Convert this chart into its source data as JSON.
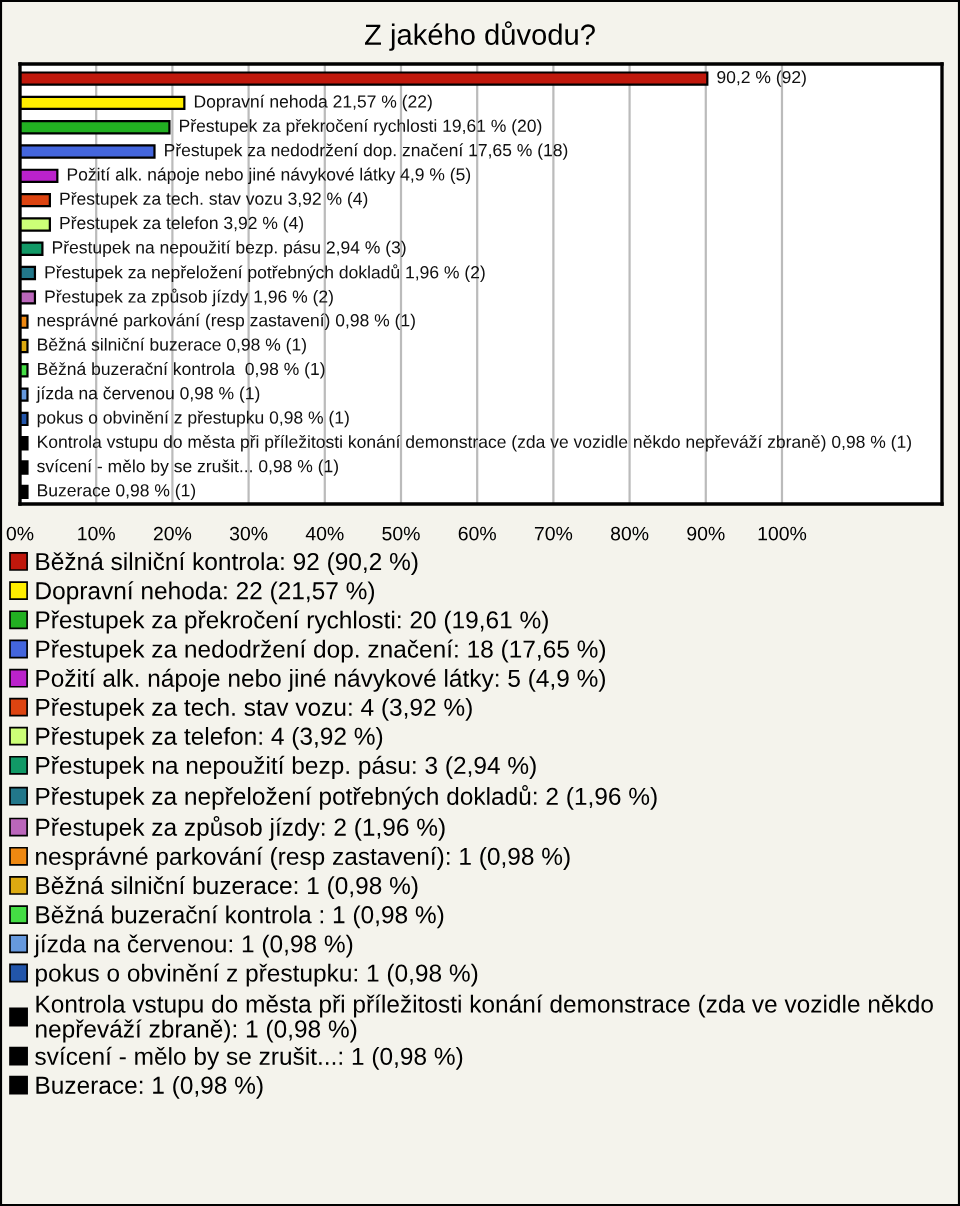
{
  "chart_data": {
    "type": "bar",
    "orientation": "horizontal",
    "title": "Z jakého důvodu?",
    "categories": [
      null,
      null,
      null,
      null,
      null,
      null,
      null,
      null,
      null,
      null,
      null,
      null,
      null,
      null,
      null,
      null,
      null,
      null
    ],
    "series": [
      {
        "name": "Běžná silniční kontrola: 92 (90,2 %)",
        "color": "#c0180c",
        "values": [
          90.2,
          null,
          null,
          null,
          null,
          null,
          null,
          null,
          null,
          null,
          null,
          null,
          null,
          null,
          null,
          null,
          null,
          null
        ],
        "value_labels": [
          "90,2 % (92)",
          null,
          null,
          null,
          null,
          null,
          null,
          null,
          null,
          null,
          null,
          null,
          null,
          null,
          null,
          null,
          null,
          null
        ]
      },
      {
        "name": "Dopravní nehoda: 22 (21,57 %)",
        "color": "#ffee00",
        "values": [
          null,
          21.57,
          null,
          null,
          null,
          null,
          null,
          null,
          null,
          null,
          null,
          null,
          null,
          null,
          null,
          null,
          null,
          null
        ],
        "value_labels": [
          null,
          "Dopravní nehoda 21,57 % (22)",
          null,
          null,
          null,
          null,
          null,
          null,
          null,
          null,
          null,
          null,
          null,
          null,
          null,
          null,
          null,
          null
        ]
      },
      {
        "name": "Přestupek za překročení rychlosti: 20 (19,61 %)",
        "color": "#22b022",
        "values": [
          null,
          null,
          19.61,
          null,
          null,
          null,
          null,
          null,
          null,
          null,
          null,
          null,
          null,
          null,
          null,
          null,
          null,
          null
        ],
        "value_labels": [
          null,
          null,
          "Přestupek za překročení rychlosti 19,61 % (20)",
          null,
          null,
          null,
          null,
          null,
          null,
          null,
          null,
          null,
          null,
          null,
          null,
          null,
          null,
          null
        ]
      },
      {
        "name": "Přestupek za nedodržení dop. značení: 18 (17,65 %)",
        "color": "#4466dd",
        "values": [
          null,
          null,
          null,
          17.65,
          null,
          null,
          null,
          null,
          null,
          null,
          null,
          null,
          null,
          null,
          null,
          null,
          null,
          null
        ],
        "value_labels": [
          null,
          null,
          null,
          "Přestupek za nedodržení dop. značení 17,65 % (18)",
          null,
          null,
          null,
          null,
          null,
          null,
          null,
          null,
          null,
          null,
          null,
          null,
          null,
          null
        ]
      },
      {
        "name": "Požití alk. nápoje nebo jiné návykové látky: 5 (4,9 %)",
        "color": "#bb22cc",
        "values": [
          null,
          null,
          null,
          null,
          4.9,
          null,
          null,
          null,
          null,
          null,
          null,
          null,
          null,
          null,
          null,
          null,
          null,
          null
        ],
        "value_labels": [
          null,
          null,
          null,
          null,
          "Požití alk. nápoje nebo jiné návykové látky 4,9 % (5)",
          null,
          null,
          null,
          null,
          null,
          null,
          null,
          null,
          null,
          null,
          null,
          null,
          null
        ]
      },
      {
        "name": "Přestupek za tech. stav vozu: 4 (3,92 %)",
        "color": "#dd4411",
        "values": [
          null,
          null,
          null,
          null,
          null,
          3.92,
          null,
          null,
          null,
          null,
          null,
          null,
          null,
          null,
          null,
          null,
          null,
          null
        ],
        "value_labels": [
          null,
          null,
          null,
          null,
          null,
          "Přestupek za tech. stav vozu 3,92 % (4)",
          null,
          null,
          null,
          null,
          null,
          null,
          null,
          null,
          null,
          null,
          null,
          null
        ]
      },
      {
        "name": "Přestupek za telefon: 4 (3,92 %)",
        "color": "#ccff77",
        "values": [
          null,
          null,
          null,
          null,
          null,
          null,
          3.92,
          null,
          null,
          null,
          null,
          null,
          null,
          null,
          null,
          null,
          null,
          null
        ],
        "value_labels": [
          null,
          null,
          null,
          null,
          null,
          null,
          "Přestupek za telefon 3,92 % (4)",
          null,
          null,
          null,
          null,
          null,
          null,
          null,
          null,
          null,
          null,
          null
        ]
      },
      {
        "name": "Přestupek na nepoužití bezp. pásu: 3 (2,94 %)",
        "color": "#119966",
        "values": [
          null,
          null,
          null,
          null,
          null,
          null,
          null,
          2.94,
          null,
          null,
          null,
          null,
          null,
          null,
          null,
          null,
          null,
          null
        ],
        "value_labels": [
          null,
          null,
          null,
          null,
          null,
          null,
          null,
          "Přestupek na nepoužití bezp. pásu 2,94 % (3)",
          null,
          null,
          null,
          null,
          null,
          null,
          null,
          null,
          null,
          null
        ]
      },
      {
        "name": "Přestupek za nepřeložení potřebných dokladů: 2 (1,96 %)",
        "color": "#22778a",
        "values": [
          null,
          null,
          null,
          null,
          null,
          null,
          null,
          null,
          1.96,
          null,
          null,
          null,
          null,
          null,
          null,
          null,
          null,
          null
        ],
        "value_labels": [
          null,
          null,
          null,
          null,
          null,
          null,
          null,
          null,
          "Přestupek za nepřeložení potřebných dokladů 1,96 % (2)",
          null,
          null,
          null,
          null,
          null,
          null,
          null,
          null,
          null
        ]
      },
      {
        "name": "Přestupek za způsob jízdy: 2 (1,96 %)",
        "color": "#bb66bb",
        "values": [
          null,
          null,
          null,
          null,
          null,
          null,
          null,
          null,
          null,
          1.96,
          null,
          null,
          null,
          null,
          null,
          null,
          null,
          null
        ],
        "value_labels": [
          null,
          null,
          null,
          null,
          null,
          null,
          null,
          null,
          null,
          "Přestupek za způsob jízdy 1,96 % (2)",
          null,
          null,
          null,
          null,
          null,
          null,
          null,
          null
        ]
      },
      {
        "name": "nesprávné parkování (resp zastavení): 1 (0,98 %)",
        "color": "#ee8811",
        "values": [
          null,
          null,
          null,
          null,
          null,
          null,
          null,
          null,
          null,
          null,
          0.98,
          null,
          null,
          null,
          null,
          null,
          null,
          null
        ],
        "value_labels": [
          null,
          null,
          null,
          null,
          null,
          null,
          null,
          null,
          null,
          null,
          "nesprávné parkování (resp zastavení) 0,98 % (1)",
          null,
          null,
          null,
          null,
          null,
          null,
          null
        ]
      },
      {
        "name": "Běžná silniční buzerace: 1 (0,98 %)",
        "color": "#ddaa11",
        "values": [
          null,
          null,
          null,
          null,
          null,
          null,
          null,
          null,
          null,
          null,
          null,
          0.98,
          null,
          null,
          null,
          null,
          null,
          null
        ],
        "value_labels": [
          null,
          null,
          null,
          null,
          null,
          null,
          null,
          null,
          null,
          null,
          null,
          "Běžná silniční buzerace 0,98 % (1)",
          null,
          null,
          null,
          null,
          null,
          null
        ]
      },
      {
        "name": "Běžná buzerační kontrola : 1 (0,98 %)",
        "color": "#44dd44",
        "values": [
          null,
          null,
          null,
          null,
          null,
          null,
          null,
          null,
          null,
          null,
          null,
          null,
          0.98,
          null,
          null,
          null,
          null,
          null
        ],
        "value_labels": [
          null,
          null,
          null,
          null,
          null,
          null,
          null,
          null,
          null,
          null,
          null,
          null,
          "Běžná buzerační kontrola  0,98 % (1)",
          null,
          null,
          null,
          null,
          null
        ]
      },
      {
        "name": "jízda na červenou: 1 (0,98 %)",
        "color": "#6699dd",
        "values": [
          null,
          null,
          null,
          null,
          null,
          null,
          null,
          null,
          null,
          null,
          null,
          null,
          null,
          0.98,
          null,
          null,
          null,
          null
        ],
        "value_labels": [
          null,
          null,
          null,
          null,
          null,
          null,
          null,
          null,
          null,
          null,
          null,
          null,
          null,
          "jízda na červenou 0,98 % (1)",
          null,
          null,
          null,
          null
        ]
      },
      {
        "name": "pokus o obvinění z přestupku: 1 (0,98 %)",
        "color": "#2255aa",
        "values": [
          null,
          null,
          null,
          null,
          null,
          null,
          null,
          null,
          null,
          null,
          null,
          null,
          null,
          null,
          0.98,
          null,
          null,
          null
        ],
        "value_labels": [
          null,
          null,
          null,
          null,
          null,
          null,
          null,
          null,
          null,
          null,
          null,
          null,
          null,
          null,
          "pokus o obvinění z přestupku 0,98 % (1)",
          null,
          null,
          null
        ]
      },
      {
        "name": "Kontrola vstupu do města při příležitosti konání demonstrace (zda ve vozidle někdo nepřeváží zbraně): 1 (0,98 %)",
        "color": "#000000",
        "values": [
          null,
          null,
          null,
          null,
          null,
          null,
          null,
          null,
          null,
          null,
          null,
          null,
          null,
          null,
          null,
          0.98,
          null,
          null
        ],
        "value_labels": [
          null,
          null,
          null,
          null,
          null,
          null,
          null,
          null,
          null,
          null,
          null,
          null,
          null,
          null,
          null,
          "Kontrola vstupu do města při příležitosti konání demonstrace (zda ve vozidle někdo nepřeváží zbraně) 0,98 % (1)",
          null,
          null
        ]
      },
      {
        "name": "svícení - mělo by se zrušit...: 1 (0,98 %)",
        "color": "#000000",
        "values": [
          null,
          null,
          null,
          null,
          null,
          null,
          null,
          null,
          null,
          null,
          null,
          null,
          null,
          null,
          null,
          null,
          0.98,
          null
        ],
        "value_labels": [
          null,
          null,
          null,
          null,
          null,
          null,
          null,
          null,
          null,
          null,
          null,
          null,
          null,
          null,
          null,
          null,
          "svícení - mělo by se zrušit... 0,98 % (1)",
          null
        ]
      },
      {
        "name": "Buzerace: 1 (0,98 %)",
        "color": "#000000",
        "values": [
          null,
          null,
          null,
          null,
          null,
          null,
          null,
          null,
          null,
          null,
          null,
          null,
          null,
          null,
          null,
          null,
          null,
          0.98
        ],
        "value_labels": [
          null,
          null,
          null,
          null,
          null,
          null,
          null,
          null,
          null,
          null,
          null,
          null,
          null,
          null,
          null,
          null,
          null,
          "Buzerace 0,98 % (1)"
        ]
      }
    ],
    "xlim": [
      0,
      121
    ],
    "xticks": [
      {
        "value": 0,
        "label": "0%"
      },
      {
        "value": 10,
        "label": "10%"
      },
      {
        "value": 20,
        "label": "20%"
      },
      {
        "value": 30,
        "label": "30%"
      },
      {
        "value": 40,
        "label": "40%"
      },
      {
        "value": 50,
        "label": "50%"
      },
      {
        "value": 60,
        "label": "60%"
      },
      {
        "value": 70,
        "label": "70%"
      },
      {
        "value": 80,
        "label": "80%"
      },
      {
        "value": 90,
        "label": "90%"
      },
      {
        "value": 100,
        "label": "100%"
      }
    ],
    "grid": "x",
    "legend": "bottom"
  }
}
